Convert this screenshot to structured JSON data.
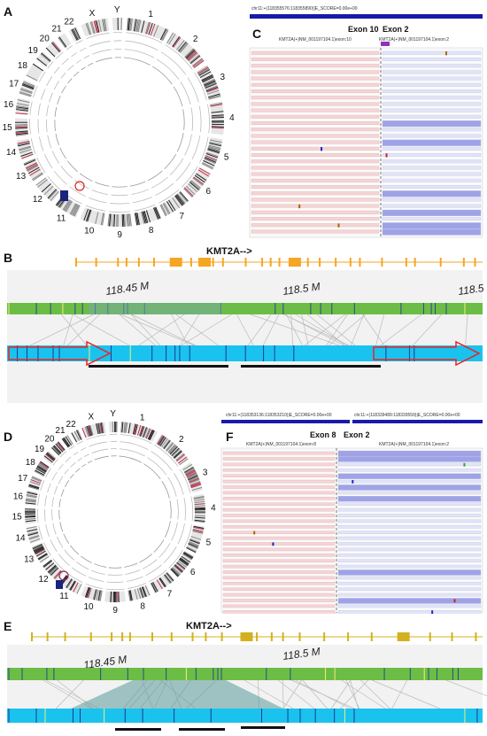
{
  "panels": [
    "A",
    "B",
    "C",
    "D",
    "E",
    "F"
  ],
  "circos_labels": [
    "1",
    "2",
    "3",
    "4",
    "5",
    "6",
    "7",
    "8",
    "9",
    "10",
    "11",
    "12",
    "13",
    "14",
    "15",
    "16",
    "17",
    "18",
    "19",
    "20",
    "21",
    "22",
    "X",
    "Y"
  ],
  "panel_c": {
    "header": "chr11:+(118355576:118355890)|E_SCORE=0.00e+00",
    "exon_left": "Exon 10",
    "exon_right": "Exon 2",
    "track_left": "KMT2A(+)NM_001197104.1)exon:10",
    "track_right": "KMT2A(+)NM_001197104.1)exon:2"
  },
  "panel_b": {
    "gene": "KMT2A-->",
    "ticks": [
      "118.45 M",
      "118.5 M",
      "118.5"
    ]
  },
  "panel_f": {
    "header_left": "chr11:+(118353136:118353210)|E_SCORE=0.00e+00",
    "header_right": "chr11:+(118339489:118339559)|E_SCORE=0.00e+00",
    "exon_left": "Exon 8",
    "exon_right": "Exon 2",
    "track_left": "KMT2A(+)NM_001197104.1)exon:8",
    "track_right": "KMT2A(+)NM_001197104.1)exon:2"
  },
  "panel_e": {
    "gene": "KMT2A-->",
    "ticks": [
      "118.45 M",
      "118.5 M"
    ]
  }
}
